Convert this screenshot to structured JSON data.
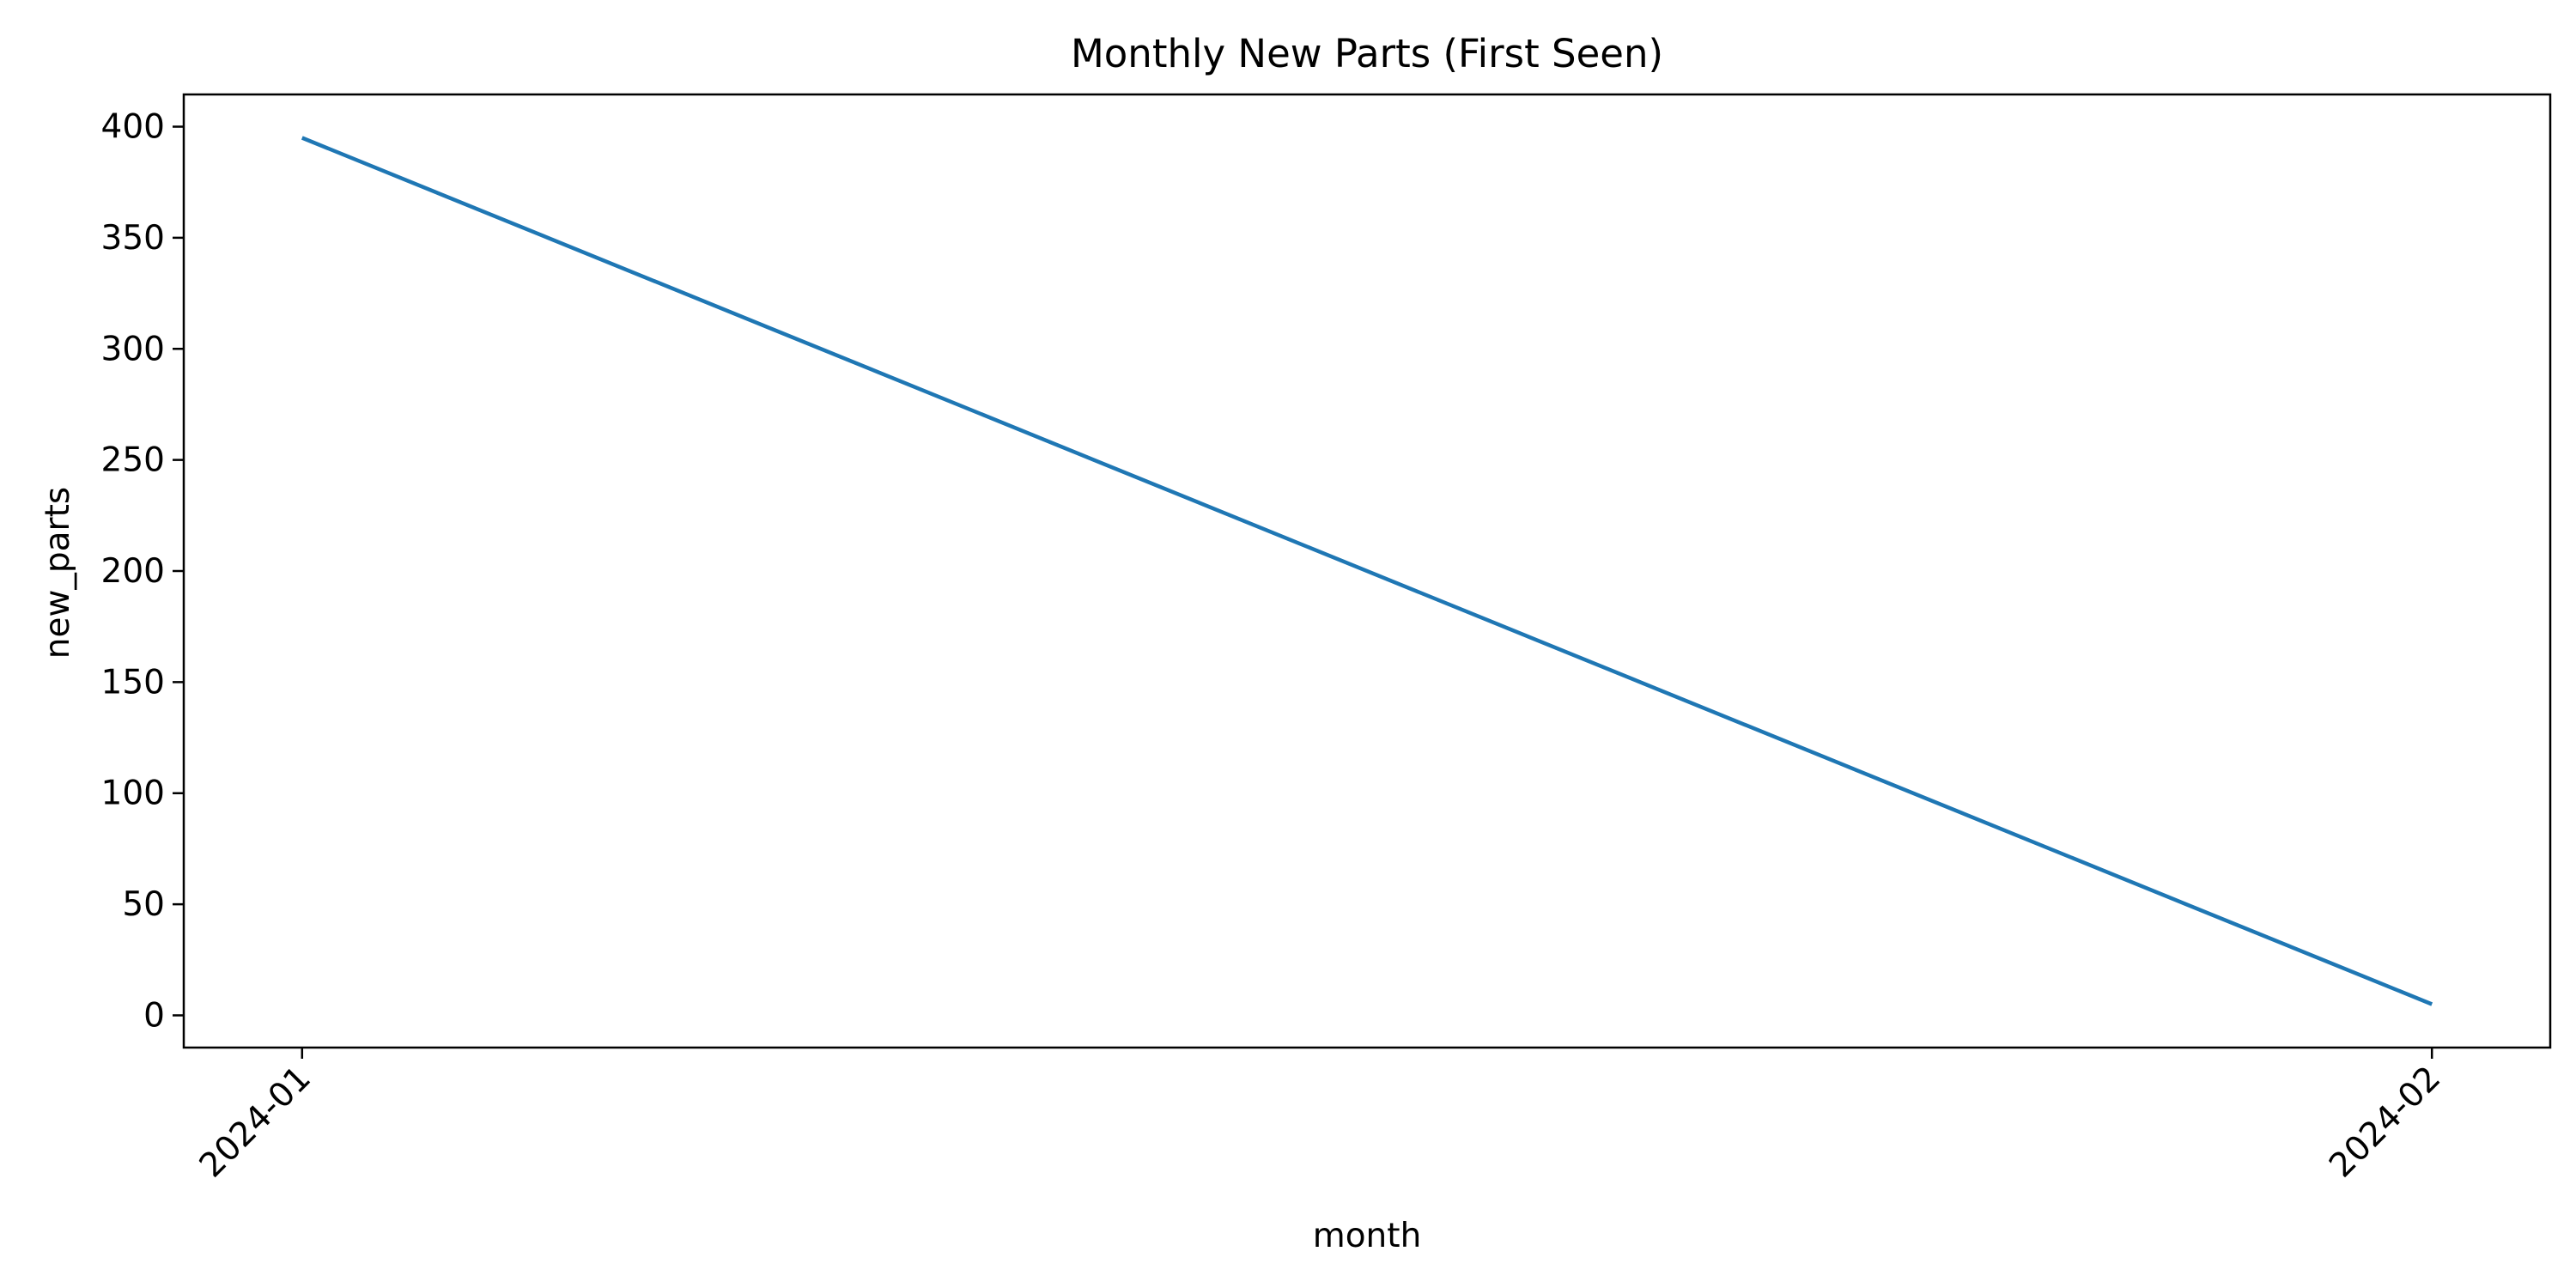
{
  "chart_data": {
    "type": "line",
    "title": "Monthly New Parts (First Seen)",
    "xlabel": "month",
    "ylabel": "new_parts",
    "x": [
      "2024-01",
      "2024-02"
    ],
    "series": [
      {
        "values": [
          395,
          5
        ]
      }
    ],
    "ylim": [
      -14.5,
      414.5
    ],
    "yticks": [
      0,
      50,
      100,
      150,
      200,
      250,
      300,
      350,
      400
    ],
    "grid": false,
    "legend": "none",
    "colors": {
      "line": "#1f77b4",
      "axes": "#000000",
      "background": "#ffffff"
    }
  }
}
